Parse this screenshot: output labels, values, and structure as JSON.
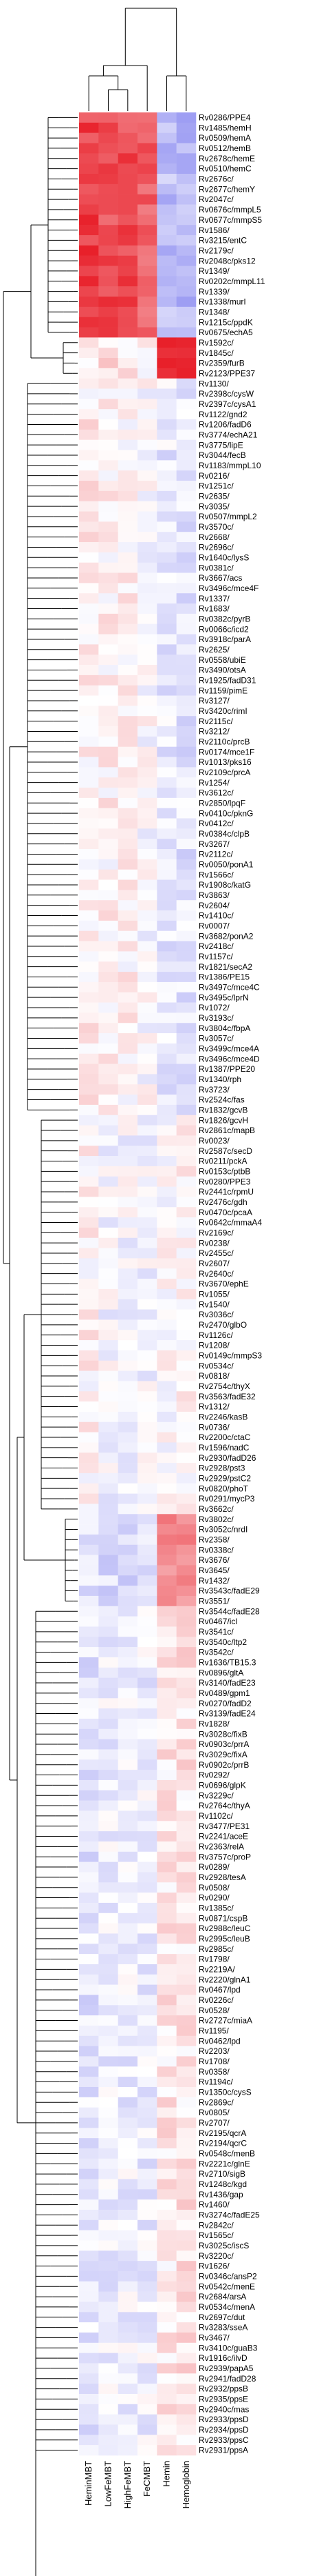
{
  "chart_data": {
    "type": "heatmap",
    "columns": [
      "HeminMBT",
      "LowFeMBT",
      "HighFeMBT",
      "FeCMBT",
      "Hemin",
      "Hemoglobin"
    ],
    "colorscale": {
      "low": "#4a4ae8",
      "mid": "#ffffff",
      "high": "#e8202a",
      "range": [
        -1,
        1
      ]
    },
    "grid": false,
    "rows": [
      "Rv0286/PPE4",
      "Rv1485/hemH",
      "Rv0509/hemA",
      "Rv0512/hemB",
      "Rv2678c/hemE",
      "Rv0510/hemC",
      "Rv2676c/",
      "Rv2677c/hemY",
      "Rv2047c/",
      "Rv0676c/mmpL5",
      "Rv0677c/mmpS5",
      "Rv1586/",
      "Rv3215/entC",
      "Rv2179c/",
      "Rv2048c/pks12",
      "Rv1349/",
      "Rv0202c/mmpL11",
      "Rv1339/",
      "Rv1338/murI",
      "Rv1348/",
      "Rv1215c/ppdK",
      "Rv0675/echA5",
      "Rv1592c/",
      "Rv1845c/",
      "Rv2359/furB",
      "Rv2123/PPE37",
      "Rv1130/",
      "Rv2398c/cysW",
      "Rv2397c/cysA1",
      "Rv1122/gnd2",
      "Rv1206/fadD6",
      "Rv3774/echA21",
      "Rv3775/lipE",
      "Rv3044/fecB",
      "Rv1183/mmpL10",
      "Rv0216/",
      "Rv1251c/",
      "Rv2635/",
      "Rv3035/",
      "Rv0507/mmpL2",
      "Rv3570c/",
      "Rv2668/",
      "Rv2696c/",
      "Rv1640c/lysS",
      "Rv0381c/",
      "Rv3667/acs",
      "Rv3496c/mce4F",
      "Rv1337/",
      "Rv1683/",
      "Rv0382c/pyrB",
      "Rv0066c/icd2",
      "Rv3918c/parA",
      "Rv2625/",
      "Rv0558/ubiE",
      "Rv3490/otsA",
      "Rv1925/fadD31",
      "Rv1159/pimE",
      "Rv3127/",
      "Rv3420c/rimI",
      "Rv2115c/",
      "Rv3212/",
      "Rv2110c/prcB",
      "Rv0174/mce1F",
      "Rv1013/pks16",
      "Rv2109c/prcA",
      "Rv1254/",
      "Rv3612c/",
      "Rv2850/lpqF",
      "Rv0410c/pknG",
      "Rv0412c/",
      "Rv0384c/clpB",
      "Rv3267/",
      "Rv2112c/",
      "Rv0050/ponA1",
      "Rv1566c/",
      "Rv1908c/katG",
      "Rv3863/",
      "Rv2604/",
      "Rv1410c/",
      "Rv0007/",
      "Rv3682/ponA2",
      "Rv2418c/",
      "Rv1157c/",
      "Rv1821/secA2",
      "Rv1386/PE15",
      "Rv3497c/mce4C",
      "Rv3495c/lprN",
      "Rv1072/",
      "Rv3193c/",
      "Rv3804c/fbpA",
      "Rv3057c/",
      "Rv3499c/mce4A",
      "Rv3496c/mce4D",
      "Rv1387/PPE20",
      "Rv1340/rph",
      "Rv3723/",
      "Rv2524c/fas",
      "Rv1832/gcvB",
      "Rv1826/gcvH",
      "Rv2861c/mapB",
      "Rv0023/",
      "Rv2587c/secD",
      "Rv0211/pckA",
      "Rv0153c/ptbB",
      "Rv0280/PPE3",
      "Rv2441c/rpmU",
      "Rv2476c/gdh",
      "Rv0470c/pcaA",
      "Rv0642c/mmaA4",
      "Rv2169c/",
      "Rv0238/",
      "Rv2455c/",
      "Rv2607/",
      "Rv2640c/",
      "Rv3670/ephE",
      "Rv1055/",
      "Rv1540/",
      "Rv3036c/",
      "Rv2470/glbO",
      "Rv1126c/",
      "Rv1208/",
      "Rv0149c/mmpS3",
      "Rv0534c/",
      "Rv0818/",
      "Rv2754c/thyX",
      "Rv3563/fadE32",
      "Rv1312/",
      "Rv2246/kasB",
      "Rv0736/",
      "Rv2200c/ctaC",
      "Rv1596/nadC",
      "Rv2930/fadD26",
      "Rv2928/pst3",
      "Rv2929/pstC2",
      "Rv0820/phoT",
      "Rv0291/mycP3",
      "Rv3662c/",
      "Rv3802c/",
      "Rv3052c/nrdI",
      "Rv2358/",
      "Rv0338c/",
      "Rv3676/",
      "Rv3645/",
      "Rv1432/",
      "Rv3543c/fadE29",
      "Rv3551/",
      "Rv3544c/fadE28",
      "Rv0467/icl",
      "Rv3541c/",
      "Rv3540c/ltp2",
      "Rv3542c/",
      "Rv1636/TB15.3",
      "Rv0896/gltA",
      "Rv3140/fadE23",
      "Rv0489/gpm1",
      "Rv0270/fadD2",
      "Rv3139/fadE24",
      "Rv1828/",
      "Rv3028c/fixB",
      "Rv0903c/prrA",
      "Rv3029c/fixA",
      "Rv0902c/prrB",
      "Rv0292/",
      "Rv0696/glpK",
      "Rv3229c/",
      "Rv2764c/thyA",
      "Rv1102c/",
      "Rv3477/PE31",
      "Rv2241/aceE",
      "Rv2363/relA",
      "Rv3757c/proP",
      "Rv0289/",
      "Rv2928/tesA",
      "Rv0508/",
      "Rv0290/",
      "Rv1385c/",
      "Rv0871/cspB",
      "Rv2988c/leuC",
      "Rv2995c/leuB",
      "Rv2985c/",
      "Rv1798/",
      "Rv2219A/",
      "Rv2220/glnA1",
      "Rv0467/lpd",
      "Rv0226c/",
      "Rv0528/",
      "Rv2727c/miaA",
      "Rv1195/",
      "Rv0462/lpd",
      "Rv2203/",
      "Rv1708/",
      "Rv0358/",
      "Rv1194c/",
      "Rv1350c/cysS",
      "Rv2869c/",
      "Rv0805/",
      "Rv2707/",
      "Rv2195/qcrA",
      "Rv2194/qcrC",
      "Rv0548c/menB",
      "Rv2221c/glnE",
      "Rv2710/sigB",
      "Rv1248c/kgd",
      "Rv1436/gap",
      "Rv1460/",
      "Rv3274c/fadE25",
      "Rv2842c/",
      "Rv1565c/",
      "Rv3025c/iscS",
      "Rv3220c/",
      "Rv1626/",
      "Rv0346c/ansP2",
      "Rv0542c/menE",
      "Rv2684/arsA",
      "Rv0534c/menA",
      "Rv2697c/dut",
      "Rv3283/sseA",
      "Rv3467/",
      "Rv3410c/guaB3",
      "Rv1916c/ilvD",
      "Rv2939/papA5",
      "Rv2941/fadD28",
      "Rv2932/ppsB",
      "Rv2935/ppsE",
      "Rv2940c/mas",
      "Rv2933/ppsD",
      "Rv2934/ppsD",
      "Rv2933/ppsC",
      "Rv2931/ppsA"
    ],
    "clusters": [
      {
        "from": 0,
        "to": 21,
        "values": [
          0.85,
          0.8,
          0.8,
          0.72,
          -0.35,
          -0.4
        ]
      },
      {
        "from": 22,
        "to": 25,
        "values": [
          0.1,
          0.15,
          0.1,
          0.05,
          0.95,
          0.9
        ]
      },
      {
        "from": 26,
        "to": 97,
        "values": [
          0.08,
          0.05,
          0.05,
          -0.02,
          -0.12,
          -0.15
        ]
      },
      {
        "from": 98,
        "to": 136,
        "values": [
          0.05,
          -0.05,
          -0.05,
          -0.05,
          0.0,
          0.05
        ]
      },
      {
        "from": 137,
        "to": 145,
        "values": [
          -0.15,
          -0.2,
          -0.2,
          -0.2,
          0.55,
          0.55
        ]
      },
      {
        "from": 146,
        "to": 246,
        "values": [
          -0.15,
          -0.1,
          -0.1,
          -0.1,
          0.1,
          0.12
        ]
      }
    ]
  }
}
